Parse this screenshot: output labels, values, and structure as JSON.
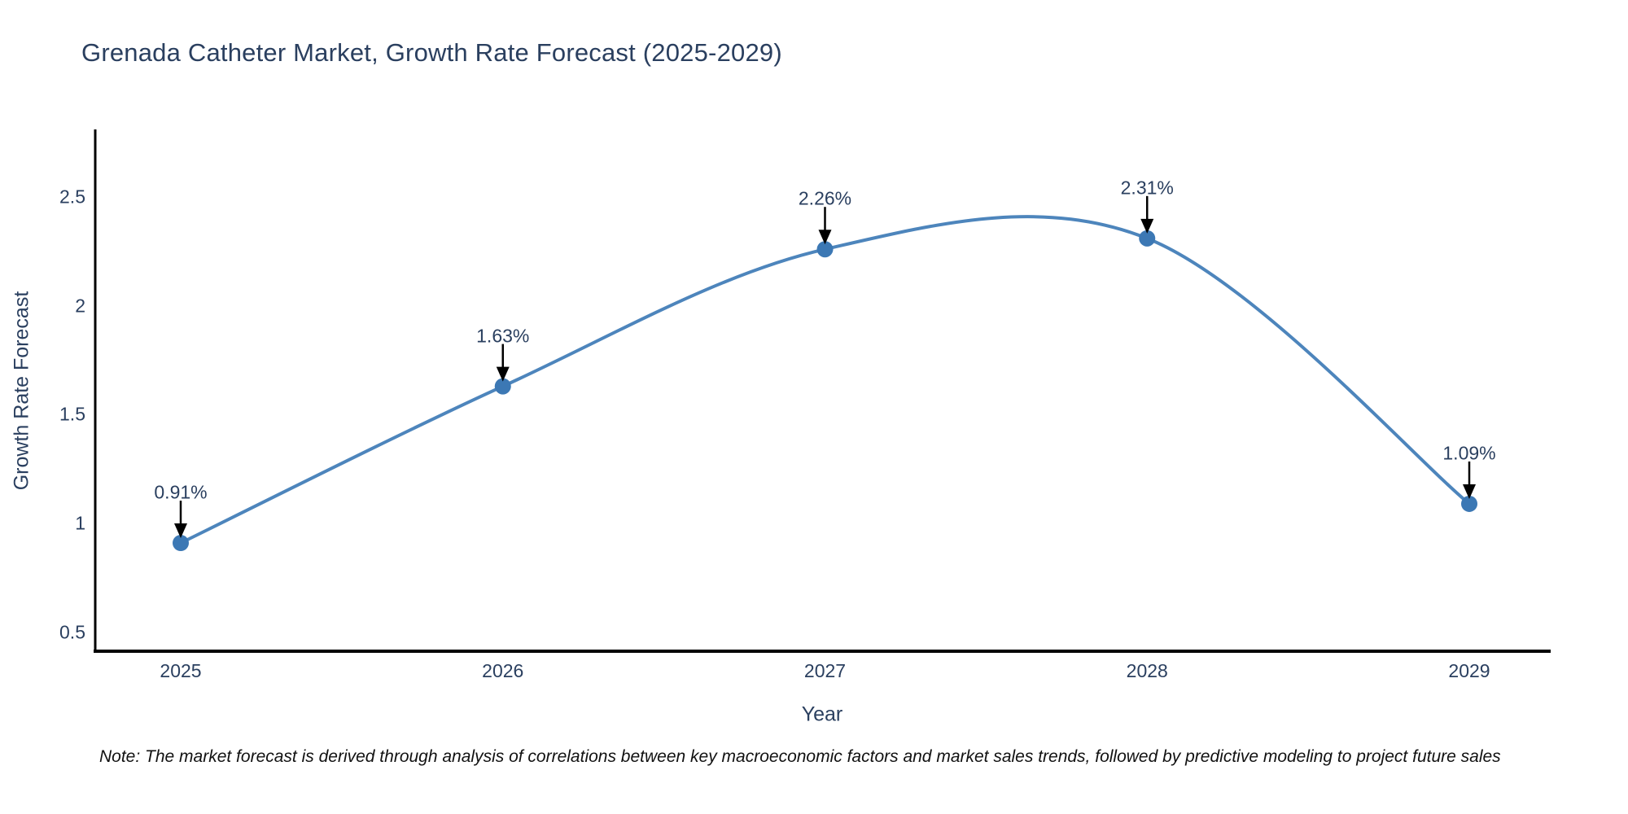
{
  "title": "Grenada Catheter Market, Growth Rate Forecast (2025-2029)",
  "note": "Note: The market forecast is derived through analysis of correlations between key macroeconomic factors and market sales trends, followed by predictive modeling to project future sales",
  "chart_data": {
    "type": "line",
    "title": "Grenada Catheter Market, Growth Rate Forecast (2025-2029)",
    "xlabel": "Year",
    "ylabel": "Growth Rate Forecast",
    "categories": [
      "2025",
      "2026",
      "2027",
      "2028",
      "2029"
    ],
    "series": [
      {
        "name": "Growth Rate Forecast",
        "values": [
          0.91,
          1.63,
          2.26,
          2.31,
          1.09
        ]
      }
    ],
    "annotations": [
      "0.91%",
      "1.63%",
      "2.26%",
      "2.31%",
      "1.09%"
    ],
    "yticks": [
      0.5,
      1,
      1.5,
      2,
      2.5
    ],
    "ylim": [
      0.41,
      2.81
    ],
    "line_shape": "spline",
    "grid": false,
    "legend": "none",
    "colors": {
      "line": "#4d85bc",
      "marker": "#3c78b4",
      "axis": "#000000",
      "text": "#2a3f5f",
      "arrow": "#000000",
      "background": "#ffffff"
    }
  }
}
